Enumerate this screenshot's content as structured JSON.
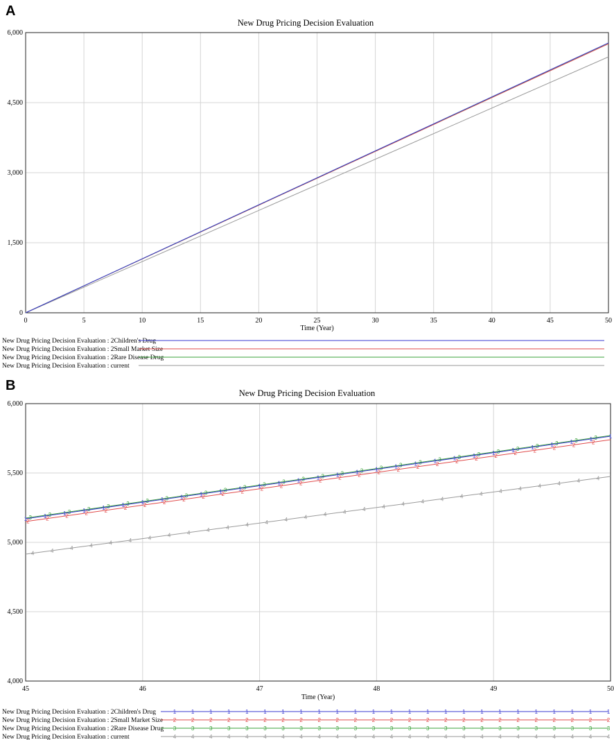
{
  "chart_data": [
    {
      "panel_label": "A",
      "type": "line",
      "title": "New Drug Pricing Decision Evaluation",
      "xlabel": "Time (Year)",
      "ylabel": "",
      "xlim": [
        0,
        50
      ],
      "ylim": [
        0,
        6000
      ],
      "xticks": [
        0,
        5,
        10,
        15,
        20,
        25,
        30,
        35,
        40,
        45,
        50
      ],
      "yticks": [
        0,
        1500,
        3000,
        4500,
        6000
      ],
      "ytick_labels": [
        "0",
        "1,500",
        "3,000",
        "4,500",
        "6,000"
      ],
      "grid": true,
      "legend_position": "bottom",
      "markers": false,
      "series": [
        {
          "name": "New Drug Pricing Decision Evaluation : 2Children's Drug",
          "color": "#3b3bd0",
          "x": [
            0,
            50
          ],
          "y": [
            0,
            5780
          ]
        },
        {
          "name": "New Drug Pricing Decision Evaluation : 2Small Market Size",
          "color": "#e04848",
          "x": [
            0,
            50
          ],
          "y": [
            0,
            5760
          ]
        },
        {
          "name": "New Drug Pricing Decision Evaluation : 2Rare Disease Drug",
          "color": "#3aa03a",
          "x": [
            0,
            50
          ],
          "y": [
            0,
            5775
          ]
        },
        {
          "name": "New Drug Pricing Decision Evaluation : current",
          "color": "#999999",
          "x": [
            0,
            50
          ],
          "y": [
            0,
            5480
          ]
        }
      ]
    },
    {
      "panel_label": "B",
      "type": "line",
      "title": "New Drug Pricing Decision Evaluation",
      "xlabel": "Time (Year)",
      "ylabel": "",
      "xlim": [
        45,
        50
      ],
      "ylim": [
        4000,
        6000
      ],
      "xticks": [
        45,
        46,
        47,
        48,
        49,
        50
      ],
      "yticks": [
        4000,
        4500,
        5000,
        5500,
        6000
      ],
      "ytick_labels": [
        "4,000",
        "4,500",
        "5,000",
        "5,500",
        "6,000"
      ],
      "grid": true,
      "legend_position": "bottom",
      "markers": true,
      "series": [
        {
          "name": "New Drug Pricing Decision Evaluation : 2Children's Drug",
          "marker": "1",
          "color": "#3b3bd0",
          "x": [
            45,
            50
          ],
          "y": [
            5170,
            5765
          ]
        },
        {
          "name": "New Drug Pricing Decision Evaluation : 2Small Market Size",
          "marker": "2",
          "color": "#e04848",
          "x": [
            45,
            50
          ],
          "y": [
            5150,
            5740
          ]
        },
        {
          "name": "New Drug Pricing Decision Evaluation : 2Rare Disease Drug",
          "marker": "3",
          "color": "#3aa03a",
          "x": [
            45,
            50
          ],
          "y": [
            5175,
            5770
          ]
        },
        {
          "name": "New Drug Pricing Decision Evaluation : current",
          "marker": "4",
          "color": "#999999",
          "x": [
            45,
            50
          ],
          "y": [
            4915,
            5475
          ]
        }
      ]
    }
  ]
}
